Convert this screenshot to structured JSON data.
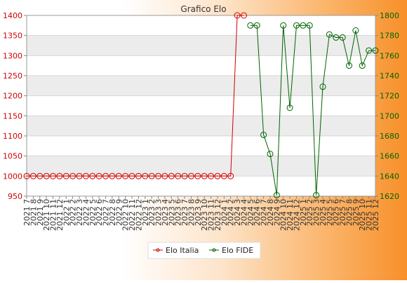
{
  "chart_data": {
    "type": "line",
    "title": "Grafico Elo",
    "xlabel": "",
    "categories": [
      "2021 7",
      "2021 8",
      "2021 9",
      "2021 10",
      "2021 11",
      "2021 12",
      "2022 1",
      "2022 2",
      "2022 3",
      "2022 4",
      "2022 5",
      "2022 6",
      "2022 7",
      "2022 8",
      "2022 9",
      "2022 10",
      "2022 11",
      "2022 12",
      "2023 1",
      "2023 2",
      "2023 3",
      "2023 4",
      "2023 5",
      "2023 6",
      "2023 7",
      "2023 8",
      "2023 9",
      "2023 10",
      "2023 11",
      "2023 12",
      "2024 1",
      "2024 2",
      "2024 3",
      "2024 4",
      "2024 5",
      "2024 6",
      "2024 7",
      "2024 8",
      "2024 9",
      "2024 10",
      "2024 11",
      "2024 12",
      "2025 1",
      "2025 2",
      "2025 3",
      "2025 4",
      "2025 5",
      "2025 6",
      "2025 7",
      "2025 8",
      "2025 9",
      "2025 10",
      "2025 11",
      "2025 12"
    ],
    "y_left": {
      "min": 950,
      "max": 1400,
      "ticks": [
        950,
        1000,
        1050,
        1100,
        1150,
        1200,
        1250,
        1300,
        1350,
        1400
      ]
    },
    "y_right": {
      "min": 1620,
      "max": 1800,
      "ticks": [
        1620,
        1640,
        1660,
        1680,
        1700,
        1720,
        1740,
        1760,
        1780,
        1800
      ]
    },
    "series": [
      {
        "name": "Elo Italia",
        "axis": "left",
        "color": "#d00000",
        "values": [
          1000,
          1000,
          1000,
          1000,
          1000,
          1000,
          1000,
          1000,
          1000,
          1000,
          1000,
          1000,
          1000,
          1000,
          1000,
          1000,
          1000,
          1000,
          1000,
          1000,
          1000,
          1000,
          1000,
          1000,
          1000,
          1000,
          1000,
          1000,
          1000,
          1000,
          1000,
          1000,
          1400,
          1400,
          null,
          null,
          null,
          null,
          null,
          null,
          null,
          null,
          null,
          null,
          null,
          null,
          null,
          null,
          null,
          null,
          null,
          null,
          null,
          null
        ]
      },
      {
        "name": "Elo FIDE",
        "axis": "right",
        "color": "#006400",
        "values": [
          null,
          null,
          null,
          null,
          null,
          null,
          null,
          null,
          null,
          null,
          null,
          null,
          null,
          null,
          null,
          null,
          null,
          null,
          null,
          null,
          null,
          null,
          null,
          null,
          null,
          null,
          null,
          null,
          null,
          null,
          null,
          null,
          null,
          null,
          1790,
          1790,
          1681,
          1662,
          1621,
          1790,
          1708,
          1790,
          1790,
          1790,
          1621,
          1729,
          1781,
          1778,
          1778,
          1750,
          1785,
          1750,
          1765,
          1765
        ]
      }
    ],
    "grid": true,
    "grid_bands": true,
    "legend_position": "bottom-center"
  }
}
